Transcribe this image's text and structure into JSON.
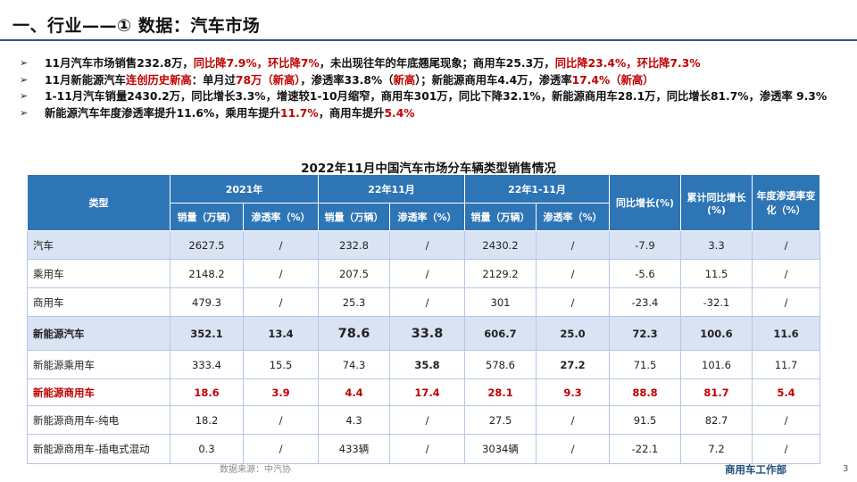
{
  "page_title": "一、行业——① 数据：汽车市场",
  "bullet_symbol": "➢",
  "bullets": [
    [
      {
        "t": "11月汽车市场销售232.8万，",
        "red": false
      },
      {
        "t": "同比降7.9%，环比降7%",
        "red": true
      },
      {
        "t": "，未出现往年的年底翘尾现象；商用车25.3万，",
        "red": false
      },
      {
        "t": "同比降23.4%，环比降7.3%",
        "red": true
      }
    ],
    [
      {
        "t": "11月新能源汽车",
        "red": false
      },
      {
        "t": "连创历史新高",
        "red": true
      },
      {
        "t": "：单月过",
        "red": false
      },
      {
        "t": "78万（新高）",
        "red": true
      },
      {
        "t": "，渗透率33.8%（",
        "red": false
      },
      {
        "t": "新高",
        "red": true
      },
      {
        "t": "）；新能源商用车4.4万，渗透率",
        "red": false
      },
      {
        "t": "17.4%（新高）",
        "red": true
      }
    ],
    [
      {
        "t": "1-11月汽车销量2430.2万，同比增长3.3%，增速较1-10月缩窄，商用车301万，同比下降32.1%，新能源商用车28.1万，同比增长81.7%，渗透率 9.3%",
        "red": false
      }
    ],
    [
      {
        "t": "新能源汽车年度渗透率提升11.6%，乘用车提升",
        "red": false
      },
      {
        "t": "11.7%",
        "red": true
      },
      {
        "t": "，商用车提升",
        "red": false
      },
      {
        "t": "5.4%",
        "red": true
      }
    ]
  ],
  "table": {
    "title": "2022年11月中国汽车市场分车辆类型销售情况",
    "header": {
      "type": "类型",
      "group_2021": "2021年",
      "group_nov": "22年11月",
      "group_ytd": "22年1-11月",
      "yoy": "同比增长(%)",
      "cum_yoy": "累计同比增长(%)",
      "pen_change": "年度渗透率变化（%）",
      "sales": "销量（万辆）",
      "penetration": "渗透率（%）"
    },
    "rows": [
      {
        "name": "汽车",
        "v2021": "2627.5",
        "p2021": "/",
        "vNov": "232.8",
        "pNov": "/",
        "vYtd": "2430.2",
        "pYtd": "/",
        "yoy": "-7.9",
        "cum": "3.3",
        "chg": "/"
      },
      {
        "name": "乘用车",
        "v2021": "2148.2",
        "p2021": "/",
        "vNov": "207.5",
        "pNov": "/",
        "vYtd": "2129.2",
        "pYtd": "/",
        "yoy": "-5.6",
        "cum": "11.5",
        "chg": "/"
      },
      {
        "name": "商用车",
        "v2021": "479.3",
        "p2021": "/",
        "vNov": "25.3",
        "pNov": "/",
        "vYtd": "301",
        "pYtd": "/",
        "yoy": "-23.4",
        "cum": "-32.1",
        "chg": "/"
      },
      {
        "name": "新能源汽车",
        "v2021": "352.1",
        "p2021": "13.4",
        "vNov": "78.6",
        "pNov": "33.8",
        "vYtd": "606.7",
        "pYtd": "25.0",
        "yoy": "72.3",
        "cum": "100.6",
        "chg": "11.6"
      },
      {
        "name": "新能源乘用车",
        "v2021": "333.4",
        "p2021": "15.5",
        "vNov": "74.3",
        "pNov": "35.8",
        "vYtd": "578.6",
        "pYtd": "27.2",
        "yoy": "71.5",
        "cum": "101.6",
        "chg": "11.7"
      },
      {
        "name": "新能源商用车",
        "v2021": "18.6",
        "p2021": "3.9",
        "vNov": "4.4",
        "pNov": "17.4",
        "vYtd": "28.1",
        "pYtd": "9.3",
        "yoy": "88.8",
        "cum": "81.7",
        "chg": "5.4"
      },
      {
        "name": "新能源商用车-纯电",
        "v2021": "18.2",
        "p2021": "/",
        "vNov": "4.3",
        "pNov": "/",
        "vYtd": "27.5",
        "pYtd": "/",
        "yoy": "91.5",
        "cum": "82.7",
        "chg": "/"
      },
      {
        "name": "新能源商用车-插电式混动",
        "v2021": "0.3",
        "p2021": "/",
        "vNov": "433辆",
        "pNov": "/",
        "vYtd": "3034辆",
        "pYtd": "/",
        "yoy": "-22.1",
        "cum": "7.2",
        "chg": "/"
      }
    ]
  },
  "source": "数据来源：中汽协",
  "footer_org": "商用车工作部",
  "page_number": "3",
  "colors": {
    "header_blue": "#2e75b6",
    "highlight_row": "#dae3f3",
    "accent_red": "#c00000",
    "rule_blue": "#2f5597"
  }
}
